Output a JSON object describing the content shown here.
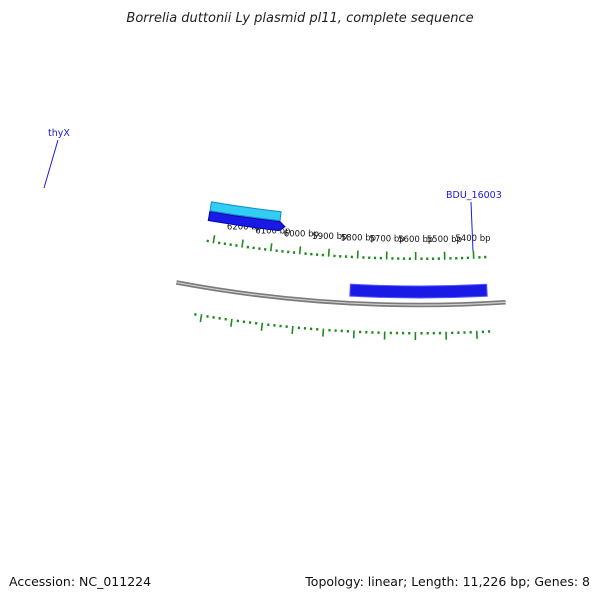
{
  "title": "Borrelia duttonii Ly plasmid pl11, complete sequence",
  "footer": {
    "accession": "Accession: NC_011224",
    "summary": "Topology: linear; Length: 11,226 bp; Genes: 8"
  },
  "colors": {
    "backbone": "#7a7a7a",
    "forward_gene": "#1a1ae6",
    "forward_gene_dark": "#0000b0",
    "reverse_gene": "#33ccf5",
    "reverse_gene_dark": "#0a8fc4",
    "ticks": "#1f8a1f",
    "label_line": "#1a1adb"
  },
  "chart_data": {
    "type": "plasmid-map",
    "visible_range_bp": [
      5360,
      6320
    ],
    "tick_labels": [
      "6200 bp",
      "6100 bp",
      "6000 bp",
      "5900 bp",
      "5800 bp",
      "5700 bp",
      "5600 bp",
      "5500 bp",
      "5400 bp"
    ],
    "tick_values_bp": [
      6200,
      6100,
      6000,
      5900,
      5800,
      5700,
      5600,
      5500,
      5400
    ],
    "genes": [
      {
        "name": "thyX",
        "strand": "reverse",
        "start_bp": 6080,
        "end_bp": 6330
      },
      {
        "name": "",
        "strand": "forward",
        "start_bp": 6080,
        "end_bp": 6330
      },
      {
        "name": "BDU_16003",
        "strand": "forward",
        "start_bp": 5360,
        "end_bp": 5820
      }
    ]
  }
}
